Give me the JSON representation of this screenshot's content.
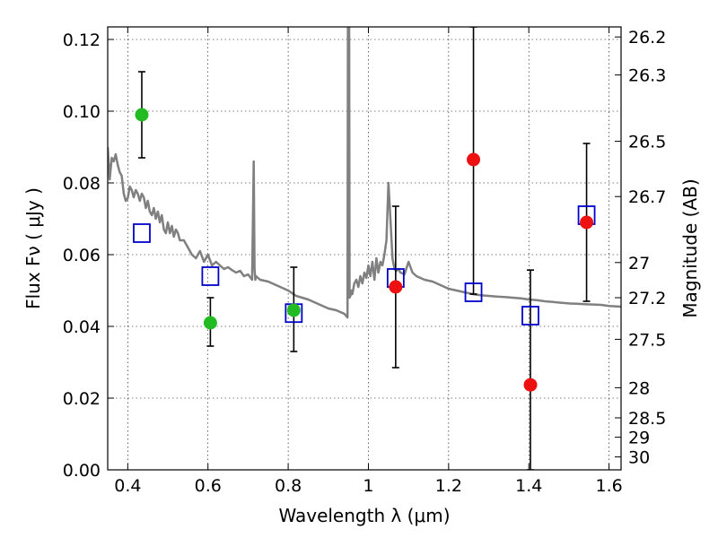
{
  "chart_data": {
    "type": "scatter",
    "title": "",
    "xlabel": "Wavelength  λ (μm)",
    "ylabel": "Flux  Fν  ( μJy )",
    "y2label": "Magnitude (AB)",
    "xlim": [
      0.35,
      1.63
    ],
    "ylim": [
      0.0,
      0.1235
    ],
    "grid": true,
    "legend": "none",
    "x_ticks": [
      0.4,
      0.6,
      0.8,
      1.0,
      1.2,
      1.4,
      1.6
    ],
    "x_tick_labels": [
      "0.4",
      "0.6",
      "0.8",
      "1",
      "1.2",
      "1.4",
      "1.6"
    ],
    "y_ticks": [
      0.0,
      0.02,
      0.04,
      0.06,
      0.08,
      0.1,
      0.12
    ],
    "y_tick_labels": [
      "0.00",
      "0.02",
      "0.04",
      "0.06",
      "0.08",
      "0.10",
      "0.12"
    ],
    "y2_ticks": [
      {
        "label": "26.2",
        "flux": 0.1207
      },
      {
        "label": "26.3",
        "flux": 0.1101
      },
      {
        "label": "26.5",
        "flux": 0.0916
      },
      {
        "label": "26.7",
        "flux": 0.0762
      },
      {
        "label": "27",
        "flux": 0.0578
      },
      {
        "label": "27.2",
        "flux": 0.048
      },
      {
        "label": "27.5",
        "flux": 0.0364
      },
      {
        "label": "28",
        "flux": 0.0229
      },
      {
        "label": "28.5",
        "flux": 0.0145
      },
      {
        "label": "29",
        "flux": 0.0091
      },
      {
        "label": "30",
        "flux": 0.0036
      }
    ],
    "colors": {
      "green": "#22bb22",
      "red": "#ee1111",
      "blue": "#0000cc",
      "model": "#808080",
      "errorbar": "#000000"
    },
    "series": [
      {
        "kind": "observed-detection",
        "color": "green",
        "points": [
          {
            "x": 0.435,
            "y": 0.099,
            "err_low": 0.087,
            "err_high": 0.111
          },
          {
            "x": 0.606,
            "y": 0.041,
            "err_low": 0.0345,
            "err_high": 0.048
          },
          {
            "x": 0.814,
            "y": 0.0445,
            "err_low": 0.033,
            "err_high": 0.0565
          }
        ]
      },
      {
        "kind": "observed-low-significance",
        "color": "red",
        "points": [
          {
            "x": 1.068,
            "y": 0.051,
            "err_low": 0.0285,
            "err_high": 0.0735
          },
          {
            "x": 1.262,
            "y": 0.0865,
            "err_low": 0.049,
            "err_high": 0.1235
          },
          {
            "x": 1.404,
            "y": 0.0237,
            "err_low": 0.0,
            "err_high": 0.0557
          },
          {
            "x": 1.544,
            "y": 0.069,
            "err_low": 0.047,
            "err_high": 0.091
          }
        ]
      },
      {
        "kind": "model-photometry",
        "color": "blue",
        "marker": "open-square",
        "points": [
          {
            "x": 0.435,
            "y": 0.066
          },
          {
            "x": 0.606,
            "y": 0.054
          },
          {
            "x": 0.814,
            "y": 0.0437
          },
          {
            "x": 1.068,
            "y": 0.0535
          },
          {
            "x": 1.262,
            "y": 0.0495
          },
          {
            "x": 1.404,
            "y": 0.043
          },
          {
            "x": 1.544,
            "y": 0.071
          }
        ]
      },
      {
        "kind": "model-sed-line",
        "color": "model",
        "x": [
          0.35,
          0.355,
          0.36,
          0.365,
          0.37,
          0.375,
          0.38,
          0.385,
          0.39,
          0.395,
          0.4,
          0.405,
          0.41,
          0.415,
          0.42,
          0.425,
          0.43,
          0.435,
          0.44,
          0.445,
          0.45,
          0.455,
          0.46,
          0.465,
          0.47,
          0.475,
          0.48,
          0.485,
          0.49,
          0.495,
          0.5,
          0.505,
          0.51,
          0.515,
          0.52,
          0.525,
          0.53,
          0.54,
          0.55,
          0.56,
          0.57,
          0.58,
          0.59,
          0.6,
          0.61,
          0.62,
          0.63,
          0.64,
          0.65,
          0.66,
          0.67,
          0.68,
          0.69,
          0.7,
          0.71,
          0.714,
          0.716,
          0.718,
          0.72,
          0.73,
          0.75,
          0.78,
          0.8,
          0.82,
          0.85,
          0.88,
          0.9,
          0.92,
          0.94,
          0.948,
          0.949,
          0.952,
          0.953,
          0.955,
          0.958,
          0.96,
          0.965,
          0.97,
          0.975,
          0.98,
          0.985,
          0.99,
          0.995,
          1.0,
          1.005,
          1.01,
          1.015,
          1.02,
          1.025,
          1.03,
          1.035,
          1.04,
          1.045,
          1.05,
          1.055,
          1.06,
          1.065,
          1.07,
          1.075,
          1.08,
          1.09,
          1.1,
          1.11,
          1.12,
          1.13,
          1.14,
          1.16,
          1.18,
          1.2,
          1.22,
          1.24,
          1.26,
          1.28,
          1.3,
          1.32,
          1.34,
          1.36,
          1.38,
          1.4,
          1.42,
          1.44,
          1.46,
          1.48,
          1.5,
          1.52,
          1.54,
          1.56,
          1.58,
          1.6,
          1.63
        ],
        "y": [
          0.09,
          0.081,
          0.087,
          0.086,
          0.088,
          0.085,
          0.083,
          0.082,
          0.077,
          0.075,
          0.0757,
          0.079,
          0.078,
          0.076,
          0.078,
          0.077,
          0.075,
          0.077,
          0.076,
          0.073,
          0.075,
          0.072,
          0.071,
          0.073,
          0.07,
          0.072,
          0.069,
          0.071,
          0.067,
          0.066,
          0.069,
          0.066,
          0.068,
          0.065,
          0.067,
          0.066,
          0.064,
          0.064,
          0.062,
          0.06,
          0.059,
          0.061,
          0.058,
          0.06,
          0.057,
          0.058,
          0.057,
          0.056,
          0.0565,
          0.0557,
          0.055,
          0.0555,
          0.054,
          0.0545,
          0.053,
          0.086,
          0.056,
          0.053,
          0.054,
          0.053,
          0.0525,
          0.051,
          0.05,
          0.0485,
          0.0475,
          0.046,
          0.045,
          0.0445,
          0.0435,
          0.0425,
          0.13,
          0.13,
          0.048,
          0.0485,
          0.05,
          0.049,
          0.052,
          0.053,
          0.051,
          0.054,
          0.052,
          0.055,
          0.0535,
          0.057,
          0.054,
          0.058,
          0.053,
          0.059,
          0.055,
          0.058,
          0.057,
          0.06,
          0.064,
          0.08,
          0.07,
          0.059,
          0.056,
          0.0555,
          0.056,
          0.055,
          0.0545,
          0.058,
          0.055,
          0.054,
          0.0535,
          0.053,
          0.0525,
          0.0515,
          0.0505,
          0.05,
          0.0495,
          0.049,
          0.0487,
          0.0485,
          0.0483,
          0.0482,
          0.048,
          0.0478,
          0.0475,
          0.0473,
          0.047,
          0.0468,
          0.0466,
          0.0464,
          0.0463,
          0.0462,
          0.0461,
          0.046,
          0.0457,
          0.0455
        ]
      }
    ]
  }
}
